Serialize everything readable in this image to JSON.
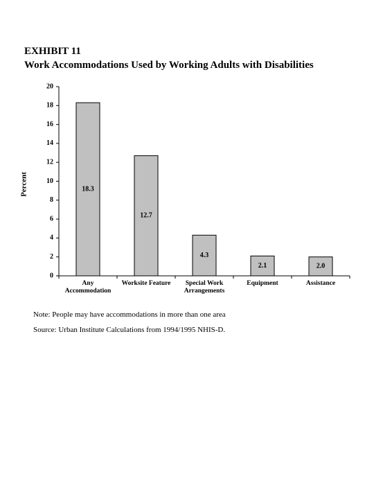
{
  "chart_data": {
    "type": "bar",
    "exhibit": "EXHIBIT 11",
    "title": "Work Accommodations Used by Working Adults with Disabilities",
    "y_label": "Percent",
    "categories": [
      "Any Accommodation",
      "Worksite Feature",
      "Special Work Arrangements",
      "Equipment",
      "Assistance"
    ],
    "values": [
      18.3,
      12.7,
      4.3,
      2.1,
      2.0
    ],
    "value_labels": [
      "18.3",
      "12.7",
      "4.3",
      "2.1",
      "2.0"
    ],
    "color": "#c0c0c0",
    "ylim": [
      0,
      20
    ],
    "yticks": [
      0,
      2,
      4,
      6,
      8,
      10,
      12,
      14,
      16,
      18,
      20
    ],
    "grid": false,
    "note": "Note:  People may have accommodations in more than one area",
    "source": "Source:  Urban Institute Calculations from 1994/1995 NHIS-D."
  }
}
